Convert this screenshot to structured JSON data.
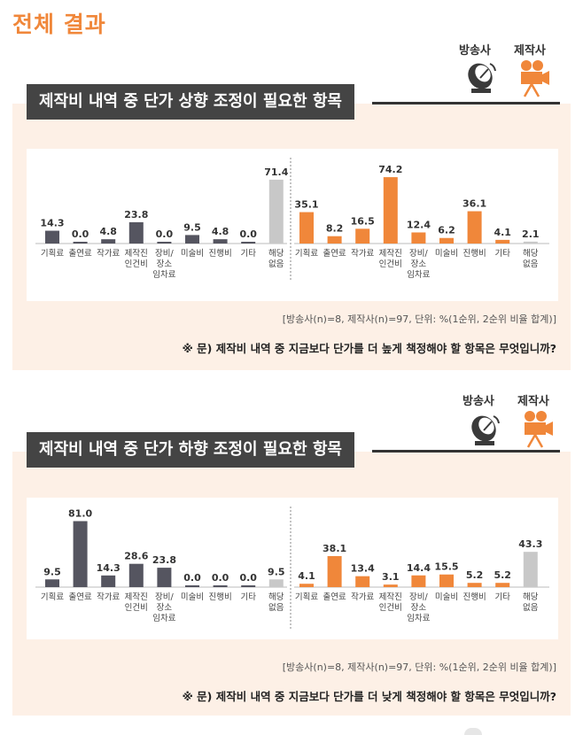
{
  "page": {
    "title": "전체 결과"
  },
  "legend": {
    "broadcaster": "방송사",
    "producer": "제작사"
  },
  "colors": {
    "broadcaster": "#555560",
    "producer": "#f0873a",
    "none": "#c8c8c8",
    "accent": "#f0873a"
  },
  "sections": [
    {
      "banner": "제작비 내역 중 단가 상향 조정이 필요한 항목",
      "source": "[방송사(n)=8, 제작사(n)=97, 단위: %(1순위, 2순위 비율 합계)]",
      "question": "※ 문) 제작비 내역 중 지금보다 단가를 더 높게 책정해야 할 항목은 무엇입니까?"
    },
    {
      "banner": "제작비 내역 중 단가 하향 조정이 필요한 항목",
      "source": "[방송사(n)=8, 제작사(n)=97, 단위: %(1순위, 2순위 비율 합계)]",
      "question": "※ 문) 제작비 내역 중 지금보다 단가를 더 낮게 책정해야 할 항목은 무엇입니까?"
    }
  ],
  "chart_data": [
    {
      "type": "bar",
      "title": "제작비 내역 중 단가 상향 조정이 필요한 항목",
      "categories": [
        "기획료",
        "출연료",
        "작가료",
        "제작진\n인건비",
        "장비/\n장소\n임차료",
        "미술비",
        "진행비",
        "기타",
        "해당\n없음"
      ],
      "series": [
        {
          "name": "방송사",
          "values": [
            14.3,
            0.0,
            4.8,
            23.8,
            0.0,
            9.5,
            4.8,
            0.0,
            71.4
          ]
        },
        {
          "name": "제작사",
          "values": [
            35.1,
            8.2,
            16.5,
            74.2,
            12.4,
            6.2,
            36.1,
            4.1,
            2.1
          ]
        }
      ],
      "ylim": [
        0,
        80
      ],
      "unit": "%"
    },
    {
      "type": "bar",
      "title": "제작비 내역 중 단가 하향 조정이 필요한 항목",
      "categories": [
        "기획료",
        "출연료",
        "작가료",
        "제작진\n인건비",
        "장비/\n장소\n임차료",
        "미술비",
        "진행비",
        "기타",
        "해당\n없음"
      ],
      "series": [
        {
          "name": "방송사",
          "values": [
            9.5,
            81.0,
            14.3,
            28.6,
            23.8,
            0.0,
            0.0,
            0.0,
            9.5
          ]
        },
        {
          "name": "제작사",
          "values": [
            4.1,
            38.1,
            13.4,
            3.1,
            14.4,
            15.5,
            5.2,
            5.2,
            43.3
          ]
        }
      ],
      "ylim": [
        0,
        85
      ],
      "unit": "%"
    }
  ]
}
